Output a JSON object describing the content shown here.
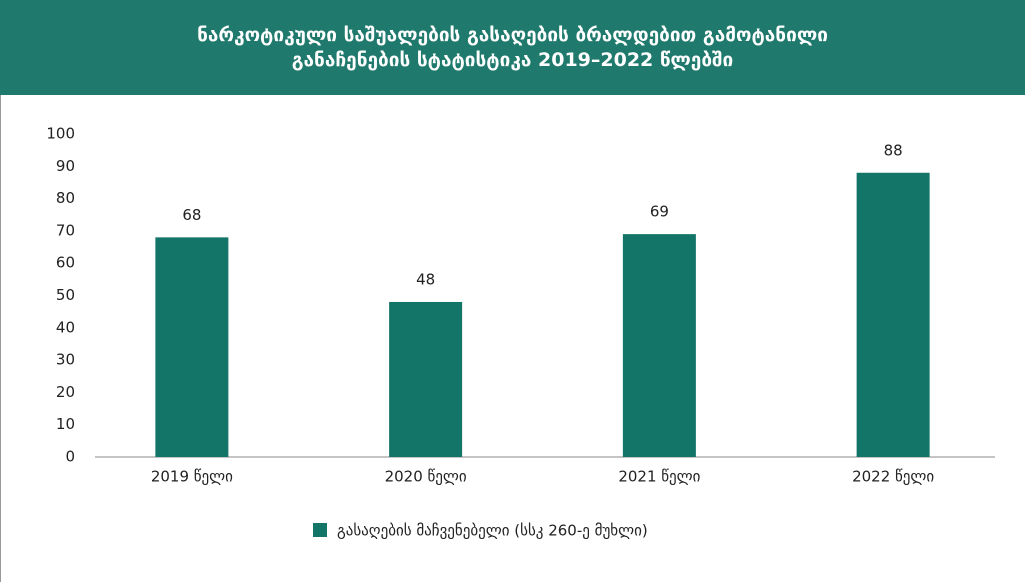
{
  "chart_data": {
    "type": "bar",
    "title": "ნარკოტიკული საშუალების გასაღების ბრალდებით გამოტანილი განაჩენების სტატისტიკა 2019–2022 წლებში",
    "categories": [
      "2019 წელი",
      "2020 წელი",
      "2021 წელი",
      "2022 წელი"
    ],
    "series": [
      {
        "name": "გასაღების მაჩვენებელი (სსკ 260-ე მუხლი)",
        "color": "#137468",
        "values": [
          68,
          48,
          69,
          88
        ]
      }
    ],
    "ylim": [
      0,
      100
    ],
    "yticks": [
      0,
      10,
      20,
      30,
      40,
      50,
      60,
      70,
      80,
      90,
      100
    ],
    "grid": false,
    "legend": "bottom"
  }
}
